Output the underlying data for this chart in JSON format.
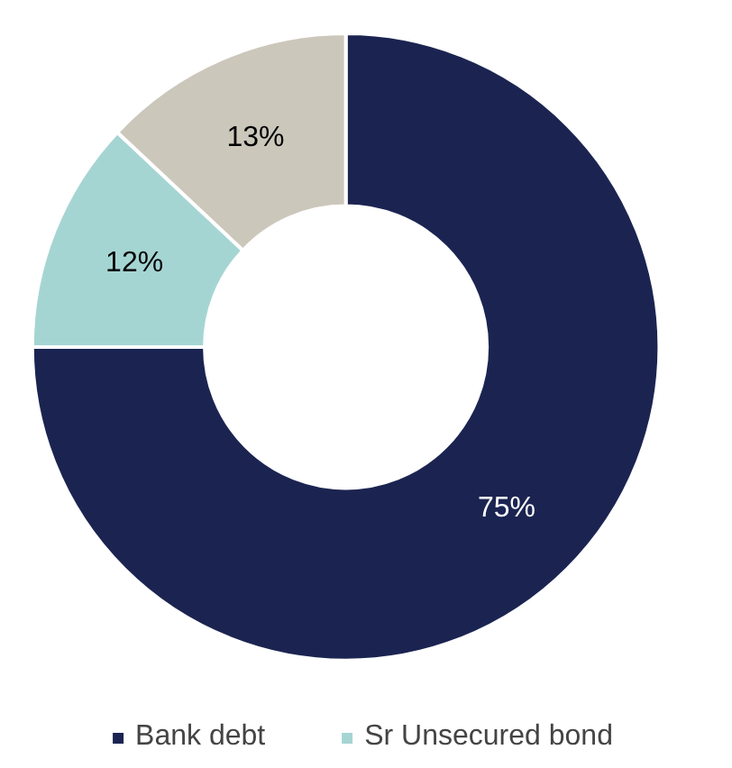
{
  "chart_data": {
    "type": "donut",
    "categories": [
      "Bank debt",
      "Sr Unsecured bond",
      null
    ],
    "values": [
      75,
      12,
      13
    ],
    "colors": [
      "#1b2451",
      "#a5d5d3",
      "#ccc7bb"
    ],
    "value_labels": [
      "75%",
      "12%",
      "13%"
    ],
    "legend": "bottom"
  }
}
